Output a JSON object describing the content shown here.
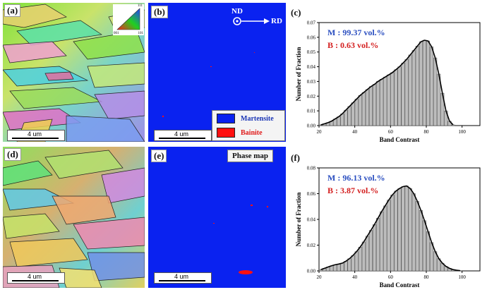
{
  "panels": {
    "a": {
      "label": "(a)",
      "scale": "4 um"
    },
    "b": {
      "label": "(b)",
      "scale": "4 um",
      "nd": "ND",
      "rd": "RD"
    },
    "c": {
      "label": "(c)"
    },
    "d": {
      "label": "(d)",
      "scale": "4 um"
    },
    "e": {
      "label": "(e)",
      "scale": "4 um",
      "phase_title": "Phase map"
    },
    "f": {
      "label": "(f)"
    }
  },
  "ipf_key": {
    "labels": [
      "111",
      "001",
      "101"
    ]
  },
  "legend": {
    "items": [
      {
        "label": "Martensite",
        "color": "#0a22f0",
        "text_color": "#1a35b5"
      },
      {
        "label": "Bainite",
        "color": "#ff1010",
        "text_color": "#e01a1a"
      }
    ]
  },
  "colors": {
    "martensite_blue": "#0a22f0",
    "bainite_red": "#ff1010",
    "m_text": "#2a4ec0",
    "b_text": "#d42020"
  },
  "chart_data": [
    {
      "type": "bar",
      "panel": "c",
      "annotations": [
        "M : 99.37 vol.%",
        "B : 0.63 vol.%"
      ],
      "xlabel": "Band Contrast",
      "ylabel": "Number of Fraction",
      "xlim": [
        20,
        110
      ],
      "ylim": [
        0,
        0.07
      ],
      "xticks": [
        "20",
        "40",
        "60",
        "80",
        "100"
      ],
      "yticks": [
        "0.00",
        "0.01",
        "0.02",
        "0.03",
        "0.04",
        "0.05",
        "0.06",
        "0.07"
      ],
      "x": [
        21,
        23,
        25,
        27,
        29,
        31,
        33,
        35,
        37,
        39,
        41,
        43,
        45,
        47,
        49,
        51,
        53,
        55,
        57,
        59,
        61,
        63,
        65,
        67,
        69,
        71,
        73,
        75,
        77,
        79,
        81,
        83,
        85,
        87,
        89,
        91,
        93,
        95
      ],
      "values": [
        0.0005,
        0.0012,
        0.002,
        0.003,
        0.0045,
        0.006,
        0.008,
        0.0105,
        0.013,
        0.0155,
        0.018,
        0.0205,
        0.0225,
        0.0245,
        0.0265,
        0.028,
        0.03,
        0.0315,
        0.033,
        0.0345,
        0.036,
        0.038,
        0.04,
        0.0425,
        0.045,
        0.048,
        0.051,
        0.054,
        0.057,
        0.058,
        0.0575,
        0.0535,
        0.046,
        0.035,
        0.022,
        0.01,
        0.003,
        0.0005
      ]
    },
    {
      "type": "bar",
      "panel": "f",
      "annotations": [
        "M : 96.13 vol.%",
        "B : 3.87 vol.%"
      ],
      "xlabel": "Band Contrast",
      "ylabel": "Number of Fraction",
      "xlim": [
        20,
        110
      ],
      "ylim": [
        0,
        0.08
      ],
      "xticks": [
        "20",
        "40",
        "60",
        "80",
        "100"
      ],
      "yticks": [
        "0.00",
        "0.02",
        "0.04",
        "0.06",
        "0.08"
      ],
      "x": [
        21,
        23,
        25,
        27,
        29,
        31,
        33,
        35,
        37,
        39,
        41,
        43,
        45,
        47,
        49,
        51,
        53,
        55,
        57,
        59,
        61,
        63,
        65,
        67,
        69,
        71,
        73,
        75,
        77,
        79,
        81,
        83,
        85,
        87,
        89,
        91,
        93,
        95,
        97,
        99
      ],
      "values": [
        0.001,
        0.002,
        0.003,
        0.004,
        0.0048,
        0.0053,
        0.006,
        0.0075,
        0.0095,
        0.012,
        0.015,
        0.0185,
        0.0225,
        0.027,
        0.0315,
        0.036,
        0.041,
        0.046,
        0.0505,
        0.055,
        0.059,
        0.062,
        0.064,
        0.0655,
        0.066,
        0.064,
        0.06,
        0.054,
        0.047,
        0.039,
        0.0305,
        0.022,
        0.015,
        0.0095,
        0.006,
        0.0035,
        0.002,
        0.001,
        0.0005,
        0.0002
      ]
    }
  ]
}
